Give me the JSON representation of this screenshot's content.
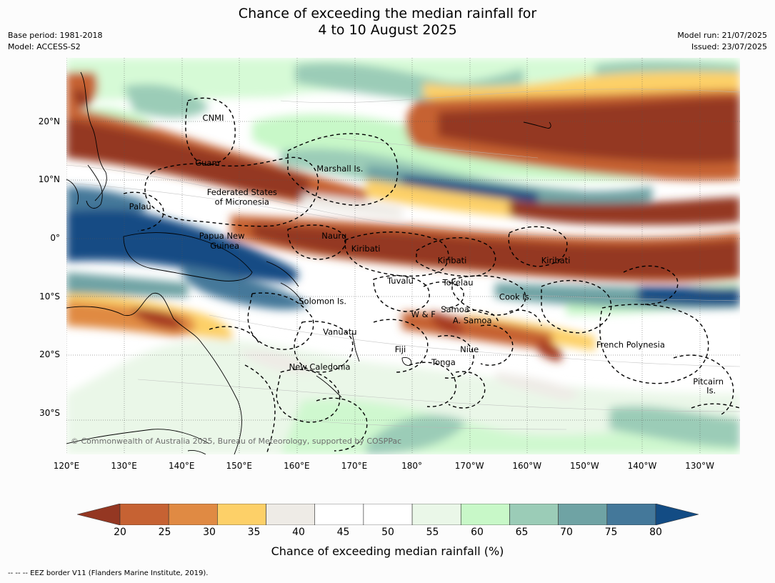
{
  "title_line1": "Chance of exceeding the median rainfall for",
  "title_line2": "4 to 10 August 2025",
  "base_period": "Base period: 1981-2018",
  "model": "Model: ACCESS-S2",
  "model_run": "Model run: 21/07/2025",
  "issued": "Issued: 23/07/2025",
  "lat_ticks": [
    {
      "label": "20°N",
      "value": 20
    },
    {
      "label": "10°N",
      "value": 10
    },
    {
      "label": "0°",
      "value": 0
    },
    {
      "label": "10°S",
      "value": -10
    },
    {
      "label": "20°S",
      "value": -20
    },
    {
      "label": "30°S",
      "value": -30
    }
  ],
  "lon_ticks": [
    {
      "label": "120°E",
      "value": 120
    },
    {
      "label": "130°E",
      "value": 130
    },
    {
      "label": "140°E",
      "value": 140
    },
    {
      "label": "150°E",
      "value": 150
    },
    {
      "label": "160°E",
      "value": 160
    },
    {
      "label": "170°E",
      "value": 170
    },
    {
      "label": "180°",
      "value": 180
    },
    {
      "label": "170°W",
      "value": 190
    },
    {
      "label": "160°W",
      "value": 200
    },
    {
      "label": "150°W",
      "value": 210
    },
    {
      "label": "140°W",
      "value": 220
    },
    {
      "label": "130°W",
      "value": 230
    }
  ],
  "map_extent": {
    "lon": [
      120,
      237
    ],
    "lat": [
      -37,
      31
    ]
  },
  "place_labels": [
    {
      "text": "CNMI",
      "lon": 145.5,
      "lat": 20.2
    },
    {
      "text": "Guam",
      "lon": 144.5,
      "lat": 12.5
    },
    {
      "text": "Marshall Is.",
      "lon": 167.5,
      "lat": 11.5
    },
    {
      "text": "Federated States",
      "lon": 150.5,
      "lat": 7.5
    },
    {
      "text": "of Micronesia",
      "lon": 150.5,
      "lat": 5.8
    },
    {
      "text": "Palau",
      "lon": 132.8,
      "lat": 5.0
    },
    {
      "text": "Papua New",
      "lon": 147.0,
      "lat": 0.0
    },
    {
      "text": "Guinea",
      "lon": 147.5,
      "lat": -1.7
    },
    {
      "text": "Nauru",
      "lon": 166.5,
      "lat": 0.0
    },
    {
      "text": "Kiribati",
      "lon": 172.0,
      "lat": -2.2
    },
    {
      "text": "Kiribati",
      "lon": 187.0,
      "lat": -4.2
    },
    {
      "text": "Kiribati",
      "lon": 205.0,
      "lat": -4.2
    },
    {
      "text": "Tuvalu",
      "lon": 178.0,
      "lat": -7.7
    },
    {
      "text": "Tokelau",
      "lon": 188.0,
      "lat": -8.0
    },
    {
      "text": "Cook Is.",
      "lon": 198.0,
      "lat": -10.5
    },
    {
      "text": "Solomon Is.",
      "lon": 164.5,
      "lat": -11.2
    },
    {
      "text": "Samoa",
      "lon": 187.5,
      "lat": -12.6
    },
    {
      "text": "W & F",
      "lon": 182.0,
      "lat": -13.5
    },
    {
      "text": "A. Samoa",
      "lon": 190.5,
      "lat": -14.5
    },
    {
      "text": "Vanuatu",
      "lon": 167.5,
      "lat": -16.5
    },
    {
      "text": "Fiji",
      "lon": 178.0,
      "lat": -19.5
    },
    {
      "text": "Niue",
      "lon": 190.0,
      "lat": -19.5
    },
    {
      "text": "Tonga",
      "lon": 185.5,
      "lat": -21.7
    },
    {
      "text": "French Polynesia",
      "lon": 218.0,
      "lat": -18.7
    },
    {
      "text": "New Caledonia",
      "lon": 164.0,
      "lat": -22.5
    },
    {
      "text": "Pitcairn",
      "lon": 231.5,
      "lat": -25.0
    },
    {
      "text": "Is.",
      "lon": 232.0,
      "lat": -26.5
    }
  ],
  "copyright": "© Commonwealth of Australia 2025, Bureau of Meteorology, supported by COSPPac",
  "colorbar": {
    "colors": [
      "#a63b21",
      "#c66233",
      "#e08a43",
      "#fdd068",
      "#eeebe6",
      "#ffffff",
      "#ffffff",
      "#eaf7e8",
      "#c8f8c8",
      "#9bccb7",
      "#6fa3a4",
      "#44789a",
      "#0f4b84"
    ],
    "labels": [
      "20",
      "25",
      "30",
      "35",
      "40",
      "45",
      "50",
      "55",
      "60",
      "65",
      "70",
      "75",
      "80"
    ],
    "title": "Chance of exceeding median rainfall (%)"
  },
  "color_scale": {
    "dry_extreme": "#943722",
    "wet_extreme": "#134c84"
  },
  "footer": "--  --  -- EEZ border V11 (Flanders Marine Institute, 2019)."
}
